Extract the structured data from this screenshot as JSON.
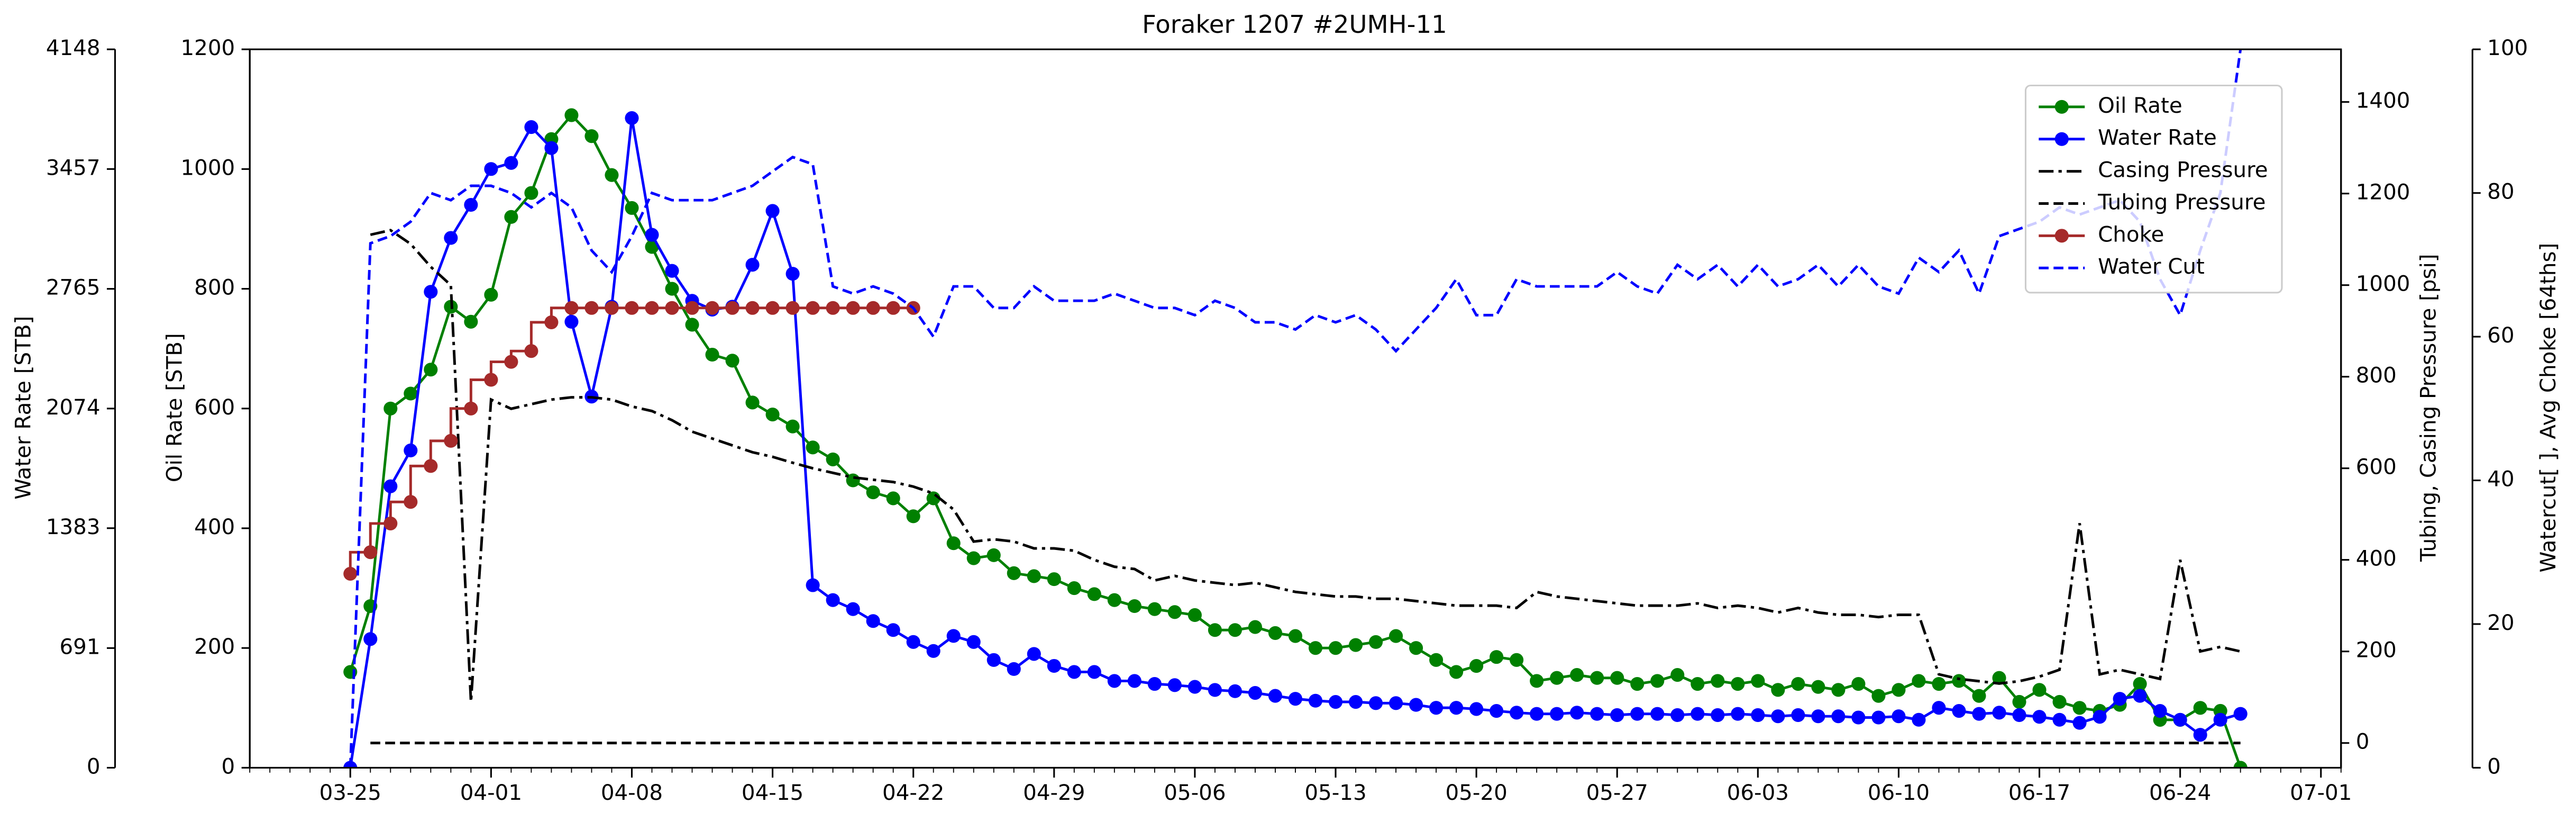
{
  "chart_data": {
    "type": "line",
    "title": "Foraker 1207 #2UMH-11",
    "ylabel": "Oil Rate [STB]",
    "y2label": "Water Rate [STB]",
    "y3label": "Tubing, Casing Pressure [psi]",
    "y4label": "Watercut[ ], Avg Choke [64ths]",
    "xlim": [
      "03-20",
      "07-02"
    ],
    "xticks": [
      "03-25",
      "04-01",
      "04-08",
      "04-15",
      "04-22",
      "04-29",
      "05-06",
      "05-13",
      "05-20",
      "05-27",
      "06-03",
      "06-10",
      "06-17",
      "06-24",
      "07-01"
    ],
    "ylim": [
      0,
      1200
    ],
    "yticks": [
      0,
      200,
      400,
      600,
      800,
      1000,
      1200
    ],
    "y2lim": [
      0,
      4148
    ],
    "y2ticks": [
      0,
      691,
      1383,
      2074,
      2765,
      3457,
      4148
    ],
    "y3lim": [
      -54,
      1515
    ],
    "y3ticks": [
      0,
      200,
      400,
      600,
      800,
      1000,
      1200,
      1400
    ],
    "y4lim": [
      0,
      100
    ],
    "y4ticks": [
      0,
      20,
      40,
      60,
      80,
      100
    ],
    "legend_loc": "upper right",
    "x": [
      "03-25",
      "03-26",
      "03-27",
      "03-28",
      "03-29",
      "03-30",
      "03-31",
      "04-01",
      "04-02",
      "04-03",
      "04-04",
      "04-05",
      "04-06",
      "04-07",
      "04-08",
      "04-09",
      "04-10",
      "04-11",
      "04-12",
      "04-13",
      "04-14",
      "04-15",
      "04-16",
      "04-17",
      "04-18",
      "04-19",
      "04-20",
      "04-21",
      "04-22",
      "04-23",
      "04-24",
      "04-25",
      "04-26",
      "04-27",
      "04-28",
      "04-29",
      "04-30",
      "05-01",
      "05-02",
      "05-03",
      "05-04",
      "05-05",
      "05-06",
      "05-07",
      "05-08",
      "05-09",
      "05-10",
      "05-11",
      "05-12",
      "05-13",
      "05-14",
      "05-15",
      "05-16",
      "05-17",
      "05-18",
      "05-19",
      "05-20",
      "05-21",
      "05-22",
      "05-23",
      "05-24",
      "05-25",
      "05-26",
      "05-27",
      "05-28",
      "05-29",
      "05-30",
      "05-31",
      "06-01",
      "06-02",
      "06-03",
      "06-04",
      "06-05",
      "06-06",
      "06-07",
      "06-08",
      "06-09",
      "06-10",
      "06-11",
      "06-12",
      "06-13",
      "06-14",
      "06-15",
      "06-16",
      "06-17",
      "06-18",
      "06-19",
      "06-20",
      "06-21",
      "06-22",
      "06-23",
      "06-24",
      "06-25",
      "06-26",
      "06-27"
    ],
    "series": [
      {
        "name": "Oil Rate",
        "color": "#008000",
        "axis": "y",
        "linestyle": "solid",
        "marker": true,
        "values": [
          160,
          270,
          600,
          625,
          665,
          770,
          745,
          790,
          920,
          960,
          1050,
          1090,
          1055,
          990,
          935,
          870,
          800,
          740,
          690,
          680,
          610,
          590,
          570,
          535,
          515,
          480,
          460,
          450,
          420,
          450,
          375,
          350,
          355,
          325,
          320,
          315,
          300,
          290,
          280,
          270,
          265,
          260,
          255,
          230,
          230,
          235,
          225,
          220,
          200,
          200,
          205,
          210,
          220,
          200,
          180,
          160,
          170,
          185,
          180,
          145,
          150,
          155,
          150,
          150,
          140,
          145,
          155,
          140,
          145,
          140,
          145,
          130,
          140,
          135,
          130,
          140,
          120,
          130,
          145,
          140,
          145,
          120,
          150,
          110,
          130,
          110,
          100,
          95,
          105,
          140,
          80,
          80,
          100,
          95,
          0
        ]
      },
      {
        "name": "Water Rate",
        "color": "#0000ff",
        "axis": "y2",
        "linestyle": "solid",
        "marker": true,
        "values": [
          0,
          743,
          1625,
          1832,
          2748,
          3059,
          3250,
          3457,
          3492,
          3699,
          3578,
          2575,
          2143,
          2662,
          3751,
          3077,
          2869,
          2696,
          2645,
          2662,
          2904,
          3215,
          2852,
          1054,
          968,
          916,
          847,
          795,
          726,
          674,
          761,
          726,
          622,
          570,
          657,
          588,
          553,
          553,
          501,
          501,
          484,
          477,
          467,
          449,
          442,
          432,
          415,
          398,
          387,
          380,
          380,
          373,
          373,
          363,
          346,
          346,
          339,
          328,
          318,
          311,
          311,
          318,
          311,
          304,
          311,
          311,
          304,
          311,
          304,
          311,
          304,
          297,
          304,
          297,
          297,
          290,
          290,
          297,
          277,
          346,
          328,
          311,
          318,
          304,
          294,
          277,
          259,
          294,
          398,
          415,
          328,
          277,
          190,
          277,
          311
        ]
      },
      {
        "name": "Casing Pressure",
        "color": "#000000",
        "axis": "y3",
        "linestyle": "dashdot",
        "marker": false,
        "values": [
          null,
          1110,
          1120,
          1090,
          1040,
          1000,
          90,
          750,
          730,
          740,
          750,
          755,
          755,
          750,
          735,
          725,
          705,
          680,
          665,
          650,
          635,
          625,
          612,
          600,
          590,
          580,
          575,
          570,
          560,
          545,
          510,
          440,
          445,
          440,
          425,
          425,
          420,
          400,
          385,
          380,
          355,
          365,
          355,
          350,
          345,
          350,
          340,
          330,
          325,
          320,
          320,
          315,
          315,
          310,
          305,
          300,
          300,
          300,
          295,
          330,
          320,
          315,
          310,
          305,
          300,
          300,
          300,
          305,
          295,
          300,
          295,
          285,
          295,
          285,
          280,
          280,
          275,
          280,
          280,
          150,
          140,
          135,
          130,
          135,
          145,
          160,
          480,
          150,
          160,
          150,
          140,
          400,
          200,
          210,
          200
        ]
      },
      {
        "name": "Tubing Pressure",
        "color": "#000000",
        "axis": "y3",
        "linestyle": "dashed",
        "marker": false,
        "values": [
          null,
          0,
          0,
          0,
          0,
          0,
          0,
          0,
          0,
          0,
          0,
          0,
          0,
          0,
          0,
          0,
          0,
          0,
          0,
          0,
          0,
          0,
          0,
          0,
          0,
          0,
          0,
          0,
          0,
          0,
          0,
          0,
          0,
          0,
          0,
          0,
          0,
          0,
          0,
          0,
          0,
          0,
          0,
          0,
          0,
          0,
          0,
          0,
          0,
          0,
          0,
          0,
          0,
          0,
          0,
          0,
          0,
          0,
          0,
          0,
          0,
          0,
          0,
          0,
          0,
          0,
          0,
          0,
          0,
          0,
          0,
          0,
          0,
          0,
          0,
          0,
          0,
          0,
          0,
          0,
          0,
          0,
          0,
          0,
          0,
          0,
          0,
          0,
          0,
          0,
          0,
          0,
          0,
          0,
          0
        ]
      },
      {
        "name": "Choke",
        "color": "#a52a2a",
        "axis": "y4",
        "linestyle": "solid",
        "marker": true,
        "drawstyle": "steps-pre",
        "values": [
          27,
          30,
          34,
          37,
          42,
          45.5,
          50,
          54,
          56.5,
          58,
          62,
          64,
          64,
          64,
          64,
          64,
          64,
          64,
          64,
          64,
          64,
          64,
          64,
          64,
          64,
          64,
          64,
          64,
          64,
          null,
          null,
          null,
          null,
          null,
          null,
          null,
          null,
          null,
          null,
          null,
          null,
          null,
          null,
          null,
          null,
          null,
          null,
          null,
          null,
          null,
          null,
          null,
          null,
          null,
          null,
          null,
          null,
          null,
          null,
          null,
          null,
          null,
          null,
          null,
          null,
          null,
          null,
          null,
          null,
          null,
          null,
          null,
          null,
          null,
          null,
          null,
          null,
          null,
          null,
          null,
          null,
          null,
          null,
          null,
          null,
          null,
          null,
          null,
          null,
          null,
          null,
          null,
          null,
          null,
          null
        ]
      },
      {
        "name": "Water Cut",
        "color": "#0000ff",
        "axis": "y4",
        "linestyle": "dashed",
        "marker": false,
        "values": [
          0,
          73,
          74,
          76,
          80,
          79,
          81,
          81,
          80,
          78,
          80,
          78,
          72,
          69,
          74,
          80,
          79,
          79,
          79,
          80,
          81,
          83,
          85,
          84,
          67,
          66,
          67,
          66,
          64,
          60,
          67,
          67,
          64,
          64,
          67,
          65,
          65,
          65,
          66,
          65,
          64,
          64,
          63,
          65,
          64,
          62,
          62,
          61,
          63,
          62,
          63,
          61,
          58,
          61,
          64,
          68,
          63,
          63,
          68,
          67,
          67,
          67,
          67,
          69,
          67,
          66,
          70,
          68,
          70,
          67,
          70,
          67,
          68,
          70,
          67,
          70,
          67,
          66,
          71,
          69,
          72,
          66,
          74,
          75,
          76,
          78,
          77,
          78,
          79,
          76,
          68,
          63,
          72,
          80,
          100
        ]
      }
    ]
  }
}
